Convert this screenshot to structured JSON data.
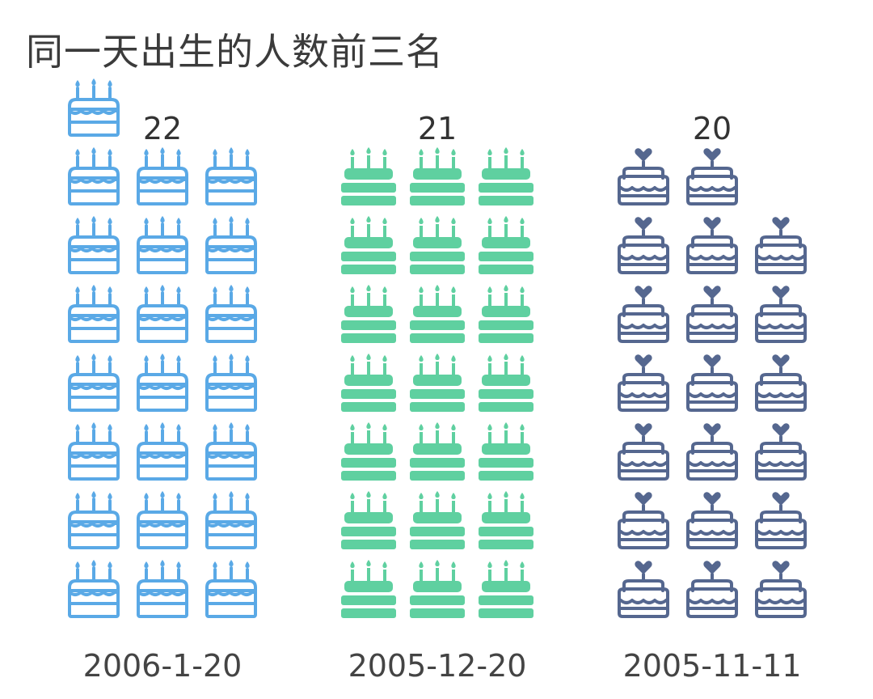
{
  "page": {
    "title": "同一天出生的人数前三名"
  },
  "chart_data": {
    "type": "pictograph",
    "title": "同一天出生的人数前三名",
    "units_per_icon": 1,
    "categories": [
      "2006-1-20",
      "2005-12-20",
      "2005-11-11"
    ],
    "values": [
      22,
      21,
      20
    ],
    "series": [
      {
        "category": "2006-1-20",
        "value": 22,
        "color": "#5aa9e6",
        "icon": "cake-candles-outline-icon"
      },
      {
        "category": "2005-12-20",
        "value": 21,
        "color": "#5fd0a0",
        "icon": "cake-candles-solid-icon"
      },
      {
        "category": "2005-11-11",
        "value": 20,
        "color": "#55678f",
        "icon": "cake-heart-outline-icon"
      }
    ]
  }
}
